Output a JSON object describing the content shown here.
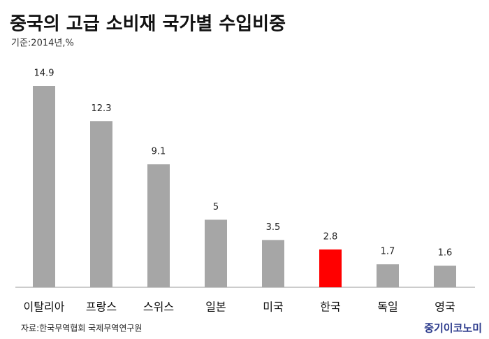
{
  "chart_data": {
    "type": "bar",
    "title": "중국의 고급 소비재 국가별 수입비중",
    "subtitle": "기준:2014년,%",
    "categories": [
      "이탈리아",
      "프랑스",
      "스위스",
      "일본",
      "미국",
      "한국",
      "독일",
      "영국"
    ],
    "values": [
      14.9,
      12.3,
      9.1,
      5,
      3.5,
      2.8,
      1.7,
      1.6
    ],
    "colors": [
      "#a6a6a6",
      "#a6a6a6",
      "#a6a6a6",
      "#a6a6a6",
      "#a6a6a6",
      "#ff0000",
      "#a6a6a6",
      "#a6a6a6"
    ],
    "source": "자료:한국무역협회 국제무역연구원",
    "brand": "중기이코노미"
  }
}
